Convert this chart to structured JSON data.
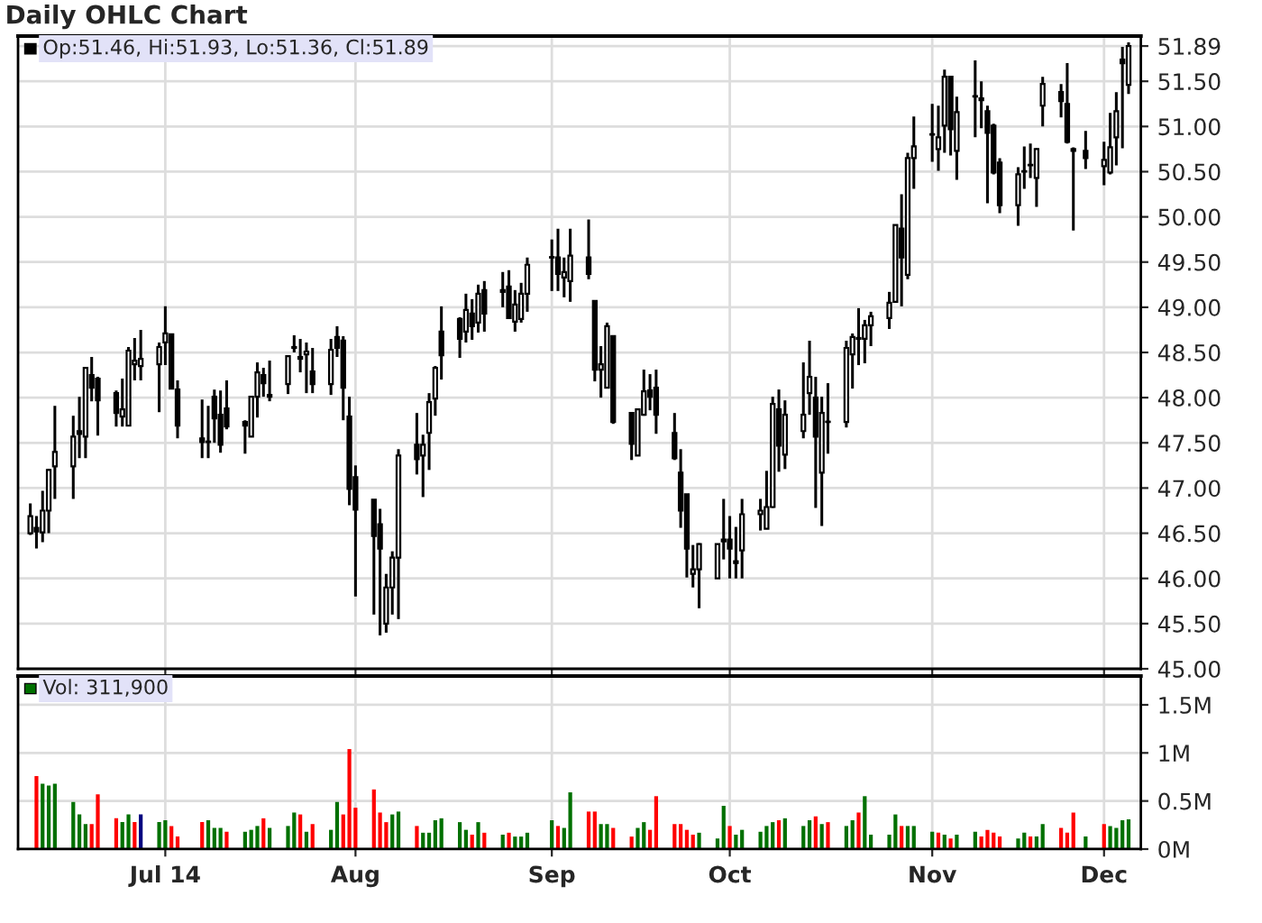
{
  "chart_data": [
    {
      "type": "candlestick",
      "title": "Daily OHLC Chart",
      "color": "#000000",
      "annotations": [
        "Op:51.46, Hi:51.93, Lo:51.36, Cl:51.89"
      ],
      "x": [
        "2014-06-09",
        "2014-06-10",
        "2014-06-11",
        "2014-06-12",
        "2014-06-13",
        "2014-06-16",
        "2014-06-17",
        "2014-06-18",
        "2014-06-19",
        "2014-06-20",
        "2014-06-23",
        "2014-06-24",
        "2014-06-25",
        "2014-06-26",
        "2014-06-27",
        "2014-06-30",
        "2014-07-01",
        "2014-07-02",
        "2014-07-03",
        "2014-07-07",
        "2014-07-08",
        "2014-07-09",
        "2014-07-10",
        "2014-07-11",
        "2014-07-14",
        "2014-07-15",
        "2014-07-16",
        "2014-07-17",
        "2014-07-18",
        "2014-07-21",
        "2014-07-22",
        "2014-07-23",
        "2014-07-24",
        "2014-07-25",
        "2014-07-28",
        "2014-07-29",
        "2014-07-30",
        "2014-07-31",
        "2014-08-01",
        "2014-08-04",
        "2014-08-05",
        "2014-08-06",
        "2014-08-07",
        "2014-08-08",
        "2014-08-11",
        "2014-08-12",
        "2014-08-13",
        "2014-08-14",
        "2014-08-15",
        "2014-08-18",
        "2014-08-19",
        "2014-08-20",
        "2014-08-21",
        "2014-08-22",
        "2014-08-25",
        "2014-08-26",
        "2014-08-27",
        "2014-08-28",
        "2014-08-29",
        "2014-09-02",
        "2014-09-03",
        "2014-09-04",
        "2014-09-05",
        "2014-09-08",
        "2014-09-09",
        "2014-09-10",
        "2014-09-11",
        "2014-09-12",
        "2014-09-15",
        "2014-09-16",
        "2014-09-17",
        "2014-09-18",
        "2014-09-19",
        "2014-09-22",
        "2014-09-23",
        "2014-09-24",
        "2014-09-25",
        "2014-09-26",
        "2014-09-29",
        "2014-09-30",
        "2014-10-01",
        "2014-10-02",
        "2014-10-03",
        "2014-10-06",
        "2014-10-07",
        "2014-10-08",
        "2014-10-09",
        "2014-10-10",
        "2014-10-13",
        "2014-10-14",
        "2014-10-15",
        "2014-10-16",
        "2014-10-17",
        "2014-10-20",
        "2014-10-21",
        "2014-10-22",
        "2014-10-23",
        "2014-10-24",
        "2014-10-27",
        "2014-10-28",
        "2014-10-29",
        "2014-10-30",
        "2014-10-31",
        "2014-11-03",
        "2014-11-04",
        "2014-11-05",
        "2014-11-06",
        "2014-11-07",
        "2014-11-10",
        "2014-11-11",
        "2014-11-12",
        "2014-11-13",
        "2014-11-14",
        "2014-11-17",
        "2014-11-18",
        "2014-11-19",
        "2014-11-20",
        "2014-11-21",
        "2014-11-24",
        "2014-11-25",
        "2014-11-26",
        "2014-11-28",
        "2014-12-01",
        "2014-12-02",
        "2014-12-03",
        "2014-12-04",
        "2014-12-05"
      ],
      "ohlc": [
        [
          46.5,
          46.83,
          46.48,
          46.69
        ],
        [
          46.56,
          46.69,
          46.33,
          46.52
        ],
        [
          46.51,
          46.97,
          46.4,
          46.75
        ],
        [
          46.75,
          47.21,
          46.5,
          47.2
        ],
        [
          47.24,
          47.91,
          46.88,
          47.4
        ],
        [
          47.24,
          47.8,
          46.88,
          47.57
        ],
        [
          47.63,
          48.01,
          47.33,
          47.6
        ],
        [
          47.57,
          48.33,
          47.33,
          48.33
        ],
        [
          48.25,
          48.45,
          47.96,
          48.11
        ],
        [
          48.21,
          48.23,
          47.58,
          47.97
        ],
        [
          48.05,
          48.08,
          47.68,
          47.83
        ],
        [
          47.79,
          48.21,
          47.68,
          47.87
        ],
        [
          47.69,
          48.56,
          47.69,
          48.52
        ],
        [
          48.37,
          48.66,
          48.19,
          48.41
        ],
        [
          48.35,
          48.75,
          48.19,
          48.43
        ],
        [
          48.37,
          48.61,
          47.84,
          48.56
        ],
        [
          48.61,
          49.01,
          48.36,
          48.71
        ],
        [
          48.7,
          48.7,
          48.1,
          48.1
        ],
        [
          48.09,
          48.19,
          47.55,
          47.69
        ],
        [
          47.55,
          47.98,
          47.33,
          47.51
        ],
        [
          47.51,
          47.91,
          47.33,
          47.51
        ],
        [
          48.01,
          48.09,
          47.5,
          47.77
        ],
        [
          47.81,
          48.08,
          47.39,
          47.48
        ],
        [
          47.88,
          48.19,
          47.65,
          47.68
        ],
        [
          47.73,
          47.75,
          47.38,
          47.69
        ],
        [
          47.57,
          48.01,
          47.57,
          48.01
        ],
        [
          48.01,
          48.39,
          47.78,
          48.28
        ],
        [
          48.25,
          48.33,
          48.01,
          48.16
        ],
        [
          48.03,
          48.41,
          47.96,
          48.01
        ],
        [
          48.15,
          48.47,
          48.04,
          48.46
        ],
        [
          48.56,
          48.69,
          48.5,
          48.55
        ],
        [
          48.45,
          48.65,
          48.28,
          48.43
        ],
        [
          48.48,
          48.61,
          48.05,
          48.51
        ],
        [
          48.29,
          48.55,
          48.05,
          48.15
        ],
        [
          48.15,
          48.65,
          48.03,
          48.53
        ],
        [
          48.67,
          48.79,
          48.45,
          48.55
        ],
        [
          48.63,
          48.68,
          47.75,
          48.11
        ],
        [
          47.79,
          48.01,
          46.81,
          46.99
        ],
        [
          47.12,
          47.25,
          45.8,
          46.76
        ],
        [
          46.87,
          46.87,
          45.6,
          46.47
        ],
        [
          46.6,
          46.77,
          45.37,
          46.33
        ],
        [
          45.5,
          46.05,
          45.4,
          45.9
        ],
        [
          45.9,
          46.3,
          45.6,
          46.23
        ],
        [
          46.23,
          47.43,
          45.55,
          47.36
        ],
        [
          47.48,
          47.83,
          47.15,
          47.32
        ],
        [
          47.36,
          47.59,
          46.9,
          47.48
        ],
        [
          47.61,
          48.05,
          47.2,
          47.95
        ],
        [
          47.99,
          48.35,
          47.8,
          48.33
        ],
        [
          48.73,
          49.01,
          48.2,
          48.47
        ],
        [
          48.87,
          48.89,
          48.44,
          48.65
        ],
        [
          48.73,
          49.15,
          48.61,
          48.97
        ],
        [
          48.93,
          49.09,
          48.64,
          48.79
        ],
        [
          48.83,
          49.25,
          48.72,
          49.15
        ],
        [
          49.19,
          49.29,
          48.73,
          48.93
        ],
        [
          49.19,
          49.39,
          49.0,
          49.17
        ],
        [
          49.23,
          49.41,
          48.87,
          48.88
        ],
        [
          48.84,
          49.19,
          48.73,
          49.03
        ],
        [
          48.87,
          49.27,
          48.83,
          49.15
        ],
        [
          49.15,
          49.55,
          48.95,
          49.47
        ],
        [
          49.55,
          49.75,
          49.18,
          49.55
        ],
        [
          49.55,
          49.87,
          49.18,
          49.37
        ],
        [
          49.33,
          49.55,
          49.11,
          49.39
        ],
        [
          49.29,
          49.87,
          49.06,
          49.57
        ],
        [
          49.55,
          49.97,
          49.31,
          49.37
        ],
        [
          49.07,
          49.07,
          48.18,
          48.31
        ],
        [
          48.31,
          48.57,
          48.0,
          48.37
        ],
        [
          48.11,
          48.83,
          48.11,
          48.79
        ],
        [
          48.68,
          48.68,
          47.71,
          47.73
        ],
        [
          47.83,
          47.83,
          47.31,
          47.49
        ],
        [
          47.36,
          47.88,
          47.36,
          47.87
        ],
        [
          47.81,
          48.31,
          47.8,
          48.07
        ],
        [
          48.08,
          48.26,
          47.86,
          48.01
        ],
        [
          48.11,
          48.31,
          47.6,
          47.81
        ],
        [
          47.61,
          47.83,
          47.31,
          47.33
        ],
        [
          47.17,
          47.43,
          46.56,
          46.75
        ],
        [
          46.93,
          46.93,
          46.01,
          46.33
        ],
        [
          46.05,
          46.37,
          45.9,
          46.1
        ],
        [
          46.1,
          46.39,
          45.67,
          46.38
        ],
        [
          46.0,
          46.38,
          46.0,
          46.38
        ],
        [
          46.41,
          46.88,
          46.21,
          46.43
        ],
        [
          46.43,
          46.69,
          46.0,
          46.33
        ],
        [
          46.17,
          46.57,
          46.0,
          46.19
        ],
        [
          46.31,
          46.88,
          46.0,
          46.71
        ],
        [
          46.71,
          46.88,
          46.53,
          46.75
        ],
        [
          46.55,
          47.19,
          46.55,
          46.79
        ],
        [
          46.79,
          48.01,
          46.78,
          47.93
        ],
        [
          47.87,
          48.09,
          47.18,
          47.47
        ],
        [
          47.37,
          47.97,
          47.21,
          47.81
        ],
        [
          47.63,
          48.39,
          47.55,
          47.81
        ],
        [
          48.05,
          48.63,
          47.81,
          48.23
        ],
        [
          48.0,
          48.23,
          46.78,
          47.57
        ],
        [
          47.17,
          48.01,
          46.58,
          47.83
        ],
        [
          47.73,
          48.16,
          47.38,
          47.73
        ],
        [
          47.73,
          48.63,
          47.67,
          48.55
        ],
        [
          48.48,
          48.71,
          48.1,
          48.67
        ],
        [
          48.66,
          48.99,
          48.36,
          48.65
        ],
        [
          48.65,
          48.86,
          48.38,
          48.8
        ],
        [
          48.8,
          48.95,
          48.57,
          48.9
        ],
        [
          48.88,
          49.17,
          48.76,
          49.05
        ],
        [
          49.06,
          49.91,
          49.06,
          49.91
        ],
        [
          49.87,
          50.25,
          49.01,
          49.55
        ],
        [
          49.36,
          50.71,
          49.31,
          50.65
        ],
        [
          50.65,
          51.11,
          50.31,
          50.78
        ],
        [
          50.91,
          51.25,
          50.61,
          50.91
        ],
        [
          50.75,
          51.23,
          50.51,
          50.88
        ],
        [
          51.01,
          51.63,
          50.71,
          51.55
        ],
        [
          51.55,
          51.55,
          50.68,
          50.97
        ],
        [
          50.73,
          51.33,
          50.41,
          51.16
        ],
        [
          51.33,
          51.73,
          50.88,
          51.33
        ],
        [
          51.31,
          51.5,
          50.98,
          51.29
        ],
        [
          51.17,
          51.23,
          50.15,
          50.93
        ],
        [
          51.01,
          51.03,
          50.47,
          50.49
        ],
        [
          50.6,
          50.65,
          50.04,
          50.13
        ],
        [
          50.13,
          50.55,
          49.9,
          50.47
        ],
        [
          50.5,
          50.78,
          50.31,
          50.5
        ],
        [
          50.57,
          50.81,
          50.43,
          50.57
        ],
        [
          50.43,
          50.76,
          50.11,
          50.75
        ],
        [
          51.23,
          51.55,
          51.0,
          51.47
        ],
        [
          51.38,
          51.47,
          51.1,
          51.28
        ],
        [
          51.25,
          51.7,
          50.81,
          50.83
        ],
        [
          50.75,
          50.77,
          49.85,
          50.73
        ],
        [
          50.73,
          50.95,
          50.53,
          50.65
        ],
        [
          50.56,
          50.83,
          50.35,
          50.63
        ],
        [
          50.49,
          51.15,
          50.47,
          50.77
        ],
        [
          50.88,
          51.38,
          50.57,
          51.17
        ],
        [
          51.74,
          51.88,
          50.76,
          51.7
        ],
        [
          51.46,
          51.93,
          51.36,
          51.89
        ]
      ],
      "ylim": [
        45.0,
        52.0
      ],
      "yticks": [
        {
          "value": 45.0,
          "label": "45.00"
        },
        {
          "value": 45.5,
          "label": "45.50"
        },
        {
          "value": 46.0,
          "label": "46.00"
        },
        {
          "value": 46.5,
          "label": "46.50"
        },
        {
          "value": 47.0,
          "label": "47.00"
        },
        {
          "value": 47.5,
          "label": "47.50"
        },
        {
          "value": 48.0,
          "label": "48.00"
        },
        {
          "value": 48.5,
          "label": "48.50"
        },
        {
          "value": 49.0,
          "label": "49.00"
        },
        {
          "value": 49.5,
          "label": "49.50"
        },
        {
          "value": 50.0,
          "label": "50.00"
        },
        {
          "value": 50.5,
          "label": "50.50"
        },
        {
          "value": 51.0,
          "label": "51.00"
        },
        {
          "value": 51.5,
          "label": "51.50"
        },
        {
          "value": 51.89,
          "label": "51.89"
        }
      ],
      "xlim": [
        "2014-06-07",
        "2014-12-07"
      ],
      "xticks": [
        {
          "value": "2014-07-01",
          "label": null
        },
        {
          "value": "2014-08-01",
          "label": null
        },
        {
          "value": "2014-09-02",
          "label": null
        },
        {
          "value": "2014-10-01",
          "label": null
        },
        {
          "value": "2014-11-03",
          "label": null
        },
        {
          "value": "2014-12-01",
          "label": null
        }
      ],
      "tick_labels": "y",
      "grid": true
    },
    {
      "type": "bar",
      "annotations": [
        "Vol: 311,900"
      ],
      "x": [
        "2014-06-10",
        "2014-06-11",
        "2014-06-12",
        "2014-06-13",
        "2014-06-16",
        "2014-06-17",
        "2014-06-18",
        "2014-06-19",
        "2014-06-20",
        "2014-06-23",
        "2014-06-24",
        "2014-06-25",
        "2014-06-26",
        "2014-06-27",
        "2014-06-30",
        "2014-07-01",
        "2014-07-02",
        "2014-07-03",
        "2014-07-07",
        "2014-07-08",
        "2014-07-09",
        "2014-07-10",
        "2014-07-11",
        "2014-07-14",
        "2014-07-15",
        "2014-07-16",
        "2014-07-17",
        "2014-07-18",
        "2014-07-21",
        "2014-07-22",
        "2014-07-23",
        "2014-07-24",
        "2014-07-25",
        "2014-07-28",
        "2014-07-29",
        "2014-07-30",
        "2014-07-31",
        "2014-08-01",
        "2014-08-04",
        "2014-08-05",
        "2014-08-06",
        "2014-08-07",
        "2014-08-08",
        "2014-08-11",
        "2014-08-12",
        "2014-08-13",
        "2014-08-14",
        "2014-08-15",
        "2014-08-18",
        "2014-08-19",
        "2014-08-20",
        "2014-08-21",
        "2014-08-22",
        "2014-08-25",
        "2014-08-26",
        "2014-08-27",
        "2014-08-28",
        "2014-08-29",
        "2014-09-02",
        "2014-09-03",
        "2014-09-04",
        "2014-09-05",
        "2014-09-08",
        "2014-09-09",
        "2014-09-10",
        "2014-09-11",
        "2014-09-12",
        "2014-09-15",
        "2014-09-16",
        "2014-09-17",
        "2014-09-18",
        "2014-09-19",
        "2014-09-22",
        "2014-09-23",
        "2014-09-24",
        "2014-09-25",
        "2014-09-26",
        "2014-09-29",
        "2014-09-30",
        "2014-10-01",
        "2014-10-02",
        "2014-10-03",
        "2014-10-06",
        "2014-10-07",
        "2014-10-08",
        "2014-10-09",
        "2014-10-10",
        "2014-10-13",
        "2014-10-14",
        "2014-10-15",
        "2014-10-16",
        "2014-10-17",
        "2014-10-20",
        "2014-10-21",
        "2014-10-22",
        "2014-10-23",
        "2014-10-24",
        "2014-10-27",
        "2014-10-28",
        "2014-10-29",
        "2014-10-30",
        "2014-10-31",
        "2014-11-03",
        "2014-11-04",
        "2014-11-05",
        "2014-11-06",
        "2014-11-07",
        "2014-11-10",
        "2014-11-11",
        "2014-11-12",
        "2014-11-13",
        "2014-11-14",
        "2014-11-17",
        "2014-11-18",
        "2014-11-19",
        "2014-11-20",
        "2014-11-21",
        "2014-11-24",
        "2014-11-25",
        "2014-11-26",
        "2014-11-28",
        "2014-12-01",
        "2014-12-02",
        "2014-12-03",
        "2014-12-04",
        "2014-12-05"
      ],
      "values": [
        0.76,
        0.68,
        0.66,
        0.68,
        0.49,
        0.36,
        0.26,
        0.26,
        0.57,
        0.32,
        0.28,
        0.36,
        0.28,
        0.36,
        0.28,
        0.3,
        0.24,
        0.13,
        0.28,
        0.3,
        0.22,
        0.22,
        0.18,
        0.18,
        0.2,
        0.24,
        0.32,
        0.22,
        0.24,
        0.38,
        0.36,
        0.18,
        0.26,
        0.2,
        0.49,
        0.36,
        1.04,
        0.43,
        0.62,
        0.38,
        0.28,
        0.36,
        0.39,
        0.24,
        0.17,
        0.17,
        0.3,
        0.32,
        0.28,
        0.2,
        0.15,
        0.28,
        0.17,
        0.15,
        0.17,
        0.13,
        0.13,
        0.17,
        0.3,
        0.24,
        0.22,
        0.59,
        0.39,
        0.39,
        0.26,
        0.26,
        0.22,
        0.13,
        0.22,
        0.28,
        0.2,
        0.55,
        0.26,
        0.26,
        0.2,
        0.15,
        0.17,
        0.11,
        0.45,
        0.24,
        0.15,
        0.2,
        0.18,
        0.24,
        0.28,
        0.3,
        0.32,
        0.24,
        0.3,
        0.34,
        0.26,
        0.28,
        0.24,
        0.3,
        0.38,
        0.55,
        0.15,
        0.15,
        0.36,
        0.24,
        0.24,
        0.24,
        0.18,
        0.17,
        0.15,
        0.11,
        0.15,
        0.18,
        0.13,
        0.2,
        0.17,
        0.13,
        0.11,
        0.17,
        0.13,
        0.13,
        0.26,
        0.22,
        0.17,
        0.38,
        0.13,
        0.26,
        0.24,
        0.22,
        0.3,
        0.31
      ],
      "colors": [
        "#ff0000",
        "#007000",
        "#007000",
        "#007000",
        "#007000",
        "#007000",
        "#007000",
        "#ff0000",
        "#ff0000",
        "#ff0000",
        "#007000",
        "#007000",
        "#ff0000",
        "#000080",
        "#007000",
        "#007000",
        "#ff0000",
        "#ff0000",
        "#ff0000",
        "#007000",
        "#007000",
        "#007000",
        "#ff0000",
        "#007000",
        "#007000",
        "#007000",
        "#ff0000",
        "#007000",
        "#007000",
        "#007000",
        "#ff0000",
        "#007000",
        "#ff0000",
        "#007000",
        "#007000",
        "#ff0000",
        "#ff0000",
        "#ff0000",
        "#ff0000",
        "#ff0000",
        "#ff0000",
        "#007000",
        "#007000",
        "#ff0000",
        "#007000",
        "#007000",
        "#007000",
        "#007000",
        "#007000",
        "#007000",
        "#ff0000",
        "#007000",
        "#ff0000",
        "#007000",
        "#ff0000",
        "#007000",
        "#007000",
        "#007000",
        "#007000",
        "#ff0000",
        "#007000",
        "#007000",
        "#ff0000",
        "#ff0000",
        "#007000",
        "#007000",
        "#ff0000",
        "#ff0000",
        "#007000",
        "#007000",
        "#ff0000",
        "#ff0000",
        "#ff0000",
        "#ff0000",
        "#ff0000",
        "#ff0000",
        "#007000",
        "#007000",
        "#007000",
        "#ff0000",
        "#007000",
        "#007000",
        "#007000",
        "#007000",
        "#007000",
        "#ff0000",
        "#007000",
        "#007000",
        "#007000",
        "#ff0000",
        "#007000",
        "#ff0000",
        "#007000",
        "#007000",
        "#ff0000",
        "#007000",
        "#007000",
        "#007000",
        "#007000",
        "#ff0000",
        "#007000",
        "#007000",
        "#007000",
        "#ff0000",
        "#007000",
        "#ff0000",
        "#007000",
        "#007000",
        "#ff0000",
        "#ff0000",
        "#ff0000",
        "#ff0000",
        "#007000",
        "#007000",
        "#ff0000",
        "#007000",
        "#007000",
        "#ff0000",
        "#ff0000",
        "#ff0000",
        "#007000",
        "#ff0000",
        "#007000",
        "#007000",
        "#007000",
        "#007000"
      ],
      "ylim": [
        0,
        1.8
      ],
      "xlim": [
        "2014-06-07",
        "2014-12-07"
      ],
      "yticks": [
        {
          "value": 0,
          "label": "0M"
        },
        {
          "value": 0.5,
          "label": "0.5M"
        },
        {
          "value": 1,
          "label": "1M"
        },
        {
          "value": 1.5,
          "label": "1.5M"
        }
      ],
      "xticks": [
        {
          "value": "2014-07-01",
          "label": "Jul 14"
        },
        {
          "value": "2014-08-01",
          "label": "Aug"
        },
        {
          "value": "2014-09-02",
          "label": "Sep"
        },
        {
          "value": "2014-10-01",
          "label": "Oct"
        },
        {
          "value": "2014-11-03",
          "label": "Nov"
        },
        {
          "value": "2014-12-01",
          "label": "Dec"
        }
      ],
      "grid": true
    }
  ]
}
